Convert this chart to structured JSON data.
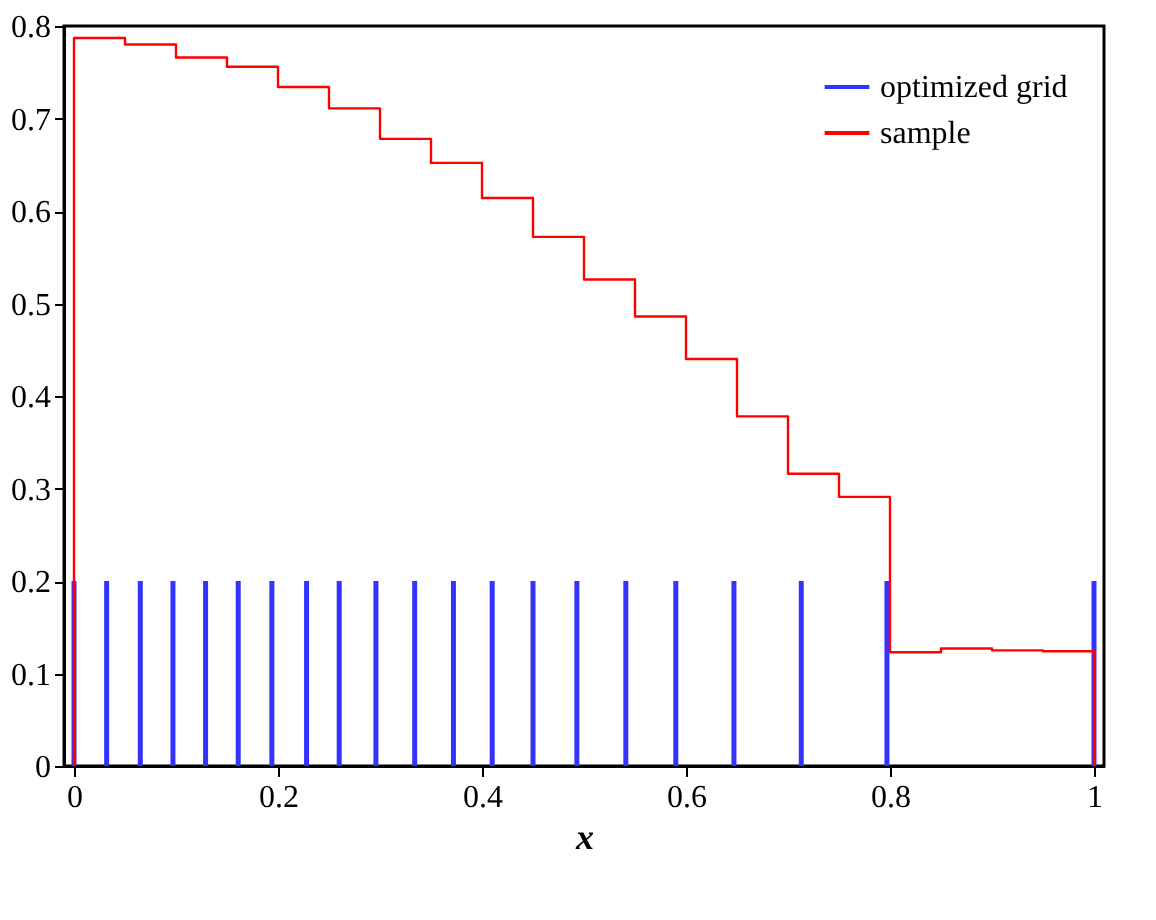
{
  "chart_data": {
    "type": "step",
    "xlabel": "x",
    "xlim": [
      0,
      1
    ],
    "ylim": [
      0,
      0.8
    ],
    "xticks": [
      0,
      0.2,
      0.4,
      0.6,
      0.8,
      1
    ],
    "yticks": [
      0,
      0.1,
      0.2,
      0.3,
      0.4,
      0.5,
      0.6,
      0.7,
      0.8
    ],
    "grid": false,
    "legend": "top right",
    "series": [
      {
        "name": "optimized grid",
        "type": "bar",
        "color": "#3333ff",
        "x": [
          0,
          0.032,
          0.065,
          0.097,
          0.129,
          0.161,
          0.194,
          0.228,
          0.26,
          0.296,
          0.334,
          0.372,
          0.41,
          0.45,
          0.493,
          0.541,
          0.59,
          0.647,
          0.713,
          0.797,
          1
        ],
        "values": [
          0.2,
          0.2,
          0.2,
          0.2,
          0.2,
          0.2,
          0.2,
          0.2,
          0.2,
          0.2,
          0.2,
          0.2,
          0.2,
          0.2,
          0.2,
          0.2,
          0.2,
          0.2,
          0.2,
          0.2,
          0.2
        ]
      },
      {
        "name": "sample",
        "color": "#ff0000",
        "x": [
          0,
          0,
          0.05,
          0.1,
          0.15,
          0.2,
          0.25,
          0.3,
          0.35,
          0.4,
          0.45,
          0.5,
          0.55,
          0.6,
          0.65,
          0.7,
          0.75,
          0.8,
          0.85,
          0.9,
          0.95,
          1,
          1
        ],
        "values": [
          0,
          0.787,
          0.78,
          0.766,
          0.756,
          0.734,
          0.711,
          0.678,
          0.652,
          0.614,
          0.572,
          0.526,
          0.486,
          0.44,
          0.378,
          0.316,
          0.291,
          0.123,
          0.127,
          0.125,
          0.124,
          0.124,
          0
        ]
      }
    ]
  }
}
